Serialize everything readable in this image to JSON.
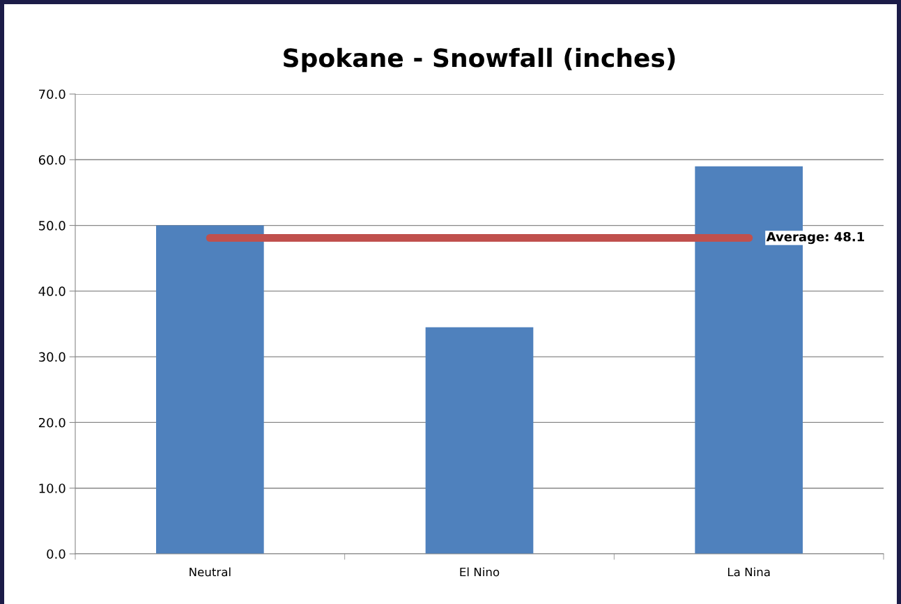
{
  "chart_data": {
    "type": "bar",
    "title": "Spokane - Snowfall (inches)",
    "categories": [
      "Neutral",
      "El Nino",
      "La Nina"
    ],
    "series": [
      {
        "color": "#4f81bd",
        "values": [
          50.0,
          34.5,
          59.0
        ]
      },
      {
        "type": "line",
        "color": "#c0504d",
        "values": [
          48.1,
          48.1,
          48.1
        ]
      }
    ],
    "annotations": [
      {
        "text": "Average: 48.1",
        "x": "La Nina",
        "y": 48.1
      }
    ],
    "ylim": [
      0,
      70
    ],
    "yticks": [
      {
        "value": 0,
        "label": "0.0"
      },
      {
        "value": 10,
        "label": "10.0"
      },
      {
        "value": 20,
        "label": "20.0"
      },
      {
        "value": 30,
        "label": "30.0"
      },
      {
        "value": 40,
        "label": "40.0"
      },
      {
        "value": 50,
        "label": "50.0"
      },
      {
        "value": 60,
        "label": "60.0"
      },
      {
        "value": 70,
        "label": "70.0"
      }
    ],
    "grid": "y",
    "legend": false
  }
}
